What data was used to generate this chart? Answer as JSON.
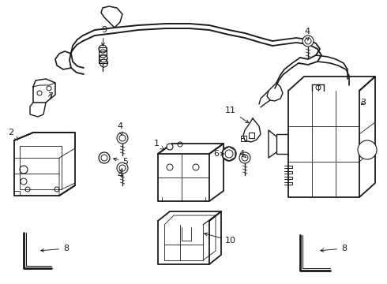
{
  "bg_color": "#ffffff",
  "line_color": "#1a1a1a",
  "fig_width": 4.9,
  "fig_height": 3.6,
  "dpi": 100,
  "label_fontsize": 7.5
}
